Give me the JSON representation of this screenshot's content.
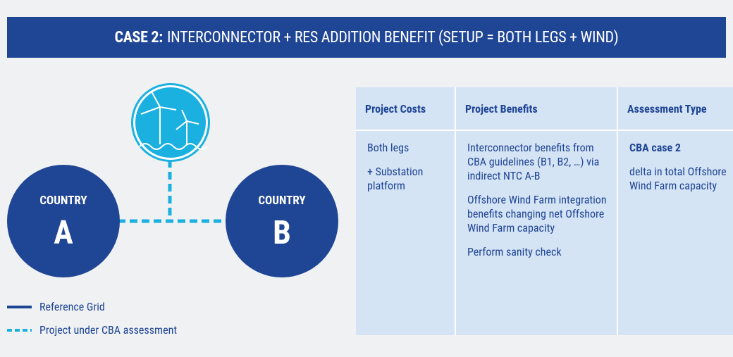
{
  "header": {
    "title_bold": "CASE 2:",
    "title": "INTERCONNECTOR + RES ADDITION BENEFIT (SETUP = BOTH LEGS + WIND)"
  },
  "nodes": [
    {
      "label": "COUNTRY",
      "letter": "A"
    },
    {
      "label": "COUNTRY",
      "letter": "B"
    }
  ],
  "legend": [
    "Reference Grid",
    "Project under CBA assessment"
  ],
  "table": {
    "headers": [
      "Project Costs",
      "Project Benefits",
      "Assessment Type"
    ],
    "costs": [
      "Both legs",
      "+ Substation platform"
    ],
    "benefits": [
      "Interconnector benefits from CBA guidelines (B1, B2, …) via indirect NTC A-B",
      "Offshore Wind Farm integration benefits changing net Offshore Wind Farm capacity",
      "Perform sanity check"
    ],
    "assessment_title": "CBA case 2",
    "assessment": "delta in total Offshore Wind Farm capacity"
  }
}
